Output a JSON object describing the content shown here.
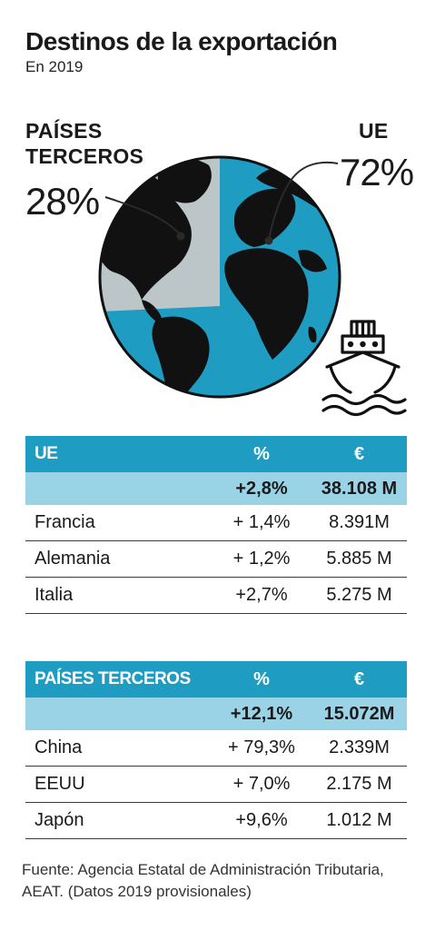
{
  "title": "Destinos de la exportación",
  "subtitle": "En 2019",
  "chart_data": {
    "type": "pie",
    "categories": [
      "PAÍSES TERCEROS",
      "UE"
    ],
    "values": [
      28,
      72
    ],
    "labels": [
      "28%",
      "72%"
    ],
    "colors": [
      "#c8c8c8",
      "#1e9cc2"
    ]
  },
  "labels": {
    "terceros_line1": "PAÍSES",
    "terceros_line2": "TERCEROS",
    "terceros_pct": "28%",
    "ue": "UE",
    "ue_pct": "72%"
  },
  "tables": [
    {
      "header": [
        "UE",
        "%",
        "€"
      ],
      "total": [
        "",
        "+2,8%",
        "38.108 M"
      ],
      "rows": [
        [
          "Francia",
          "+ 1,4%",
          "8.391M"
        ],
        [
          "Alemania",
          "+ 1,2%",
          "5.885 M"
        ],
        [
          "Italia",
          "+2,7%",
          "5.275 M"
        ]
      ]
    },
    {
      "header": [
        "PAÍSES TERCEROS",
        "%",
        "€"
      ],
      "total": [
        "",
        "+12,1%",
        "15.072M"
      ],
      "rows": [
        [
          "China",
          "+ 79,3%",
          "2.339M"
        ],
        [
          "EEUU",
          "+ 7,0%",
          "2.175 M"
        ],
        [
          "Japón",
          "+9,6%",
          "1.012 M"
        ]
      ]
    }
  ],
  "source": "Fuente: Agencia Estatal de Administración Tributaria, AEAT. (Datos 2019 provisionales)",
  "icons": {
    "ship": "ship-icon",
    "globe": "globe-icon"
  }
}
